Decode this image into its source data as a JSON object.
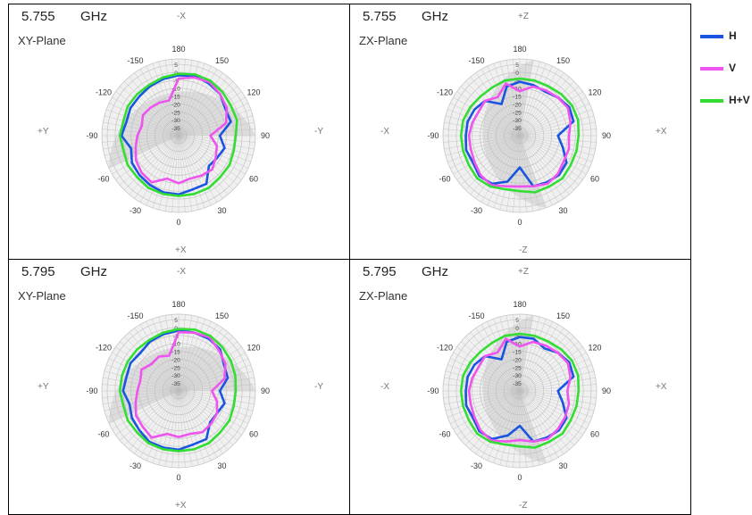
{
  "colors": {
    "H": "#1a55e0",
    "V": "#ee55ee",
    "HV": "#33dd33",
    "grid": "#bdbdbd",
    "shade": "#d9d9d9"
  },
  "legend": [
    {
      "label": "H",
      "color": "#1a55e0"
    },
    {
      "label": "V",
      "color": "#ee55ee"
    },
    {
      "label": "H+V",
      "color": "#33dd33"
    }
  ],
  "chart_data": [
    {
      "type": "line",
      "polar": true,
      "freq": "5.755",
      "unit": "GHz",
      "plane": "XY-Plane",
      "axis_top": "-X",
      "axis_bottom": "+X",
      "axis_left": "+Y",
      "axis_right": "-Y",
      "angle_labels": [
        "180",
        "-150",
        "-120",
        "-90",
        "-60",
        "-30",
        "0",
        "30",
        "60",
        "90",
        "120",
        "150"
      ],
      "radial_ticks": [
        "5",
        "0",
        "-5",
        "-10",
        "-15",
        "-20",
        "-25",
        "-30",
        "-35"
      ],
      "rlim": [
        -40,
        5
      ],
      "shaded_sector_deg": [
        -90,
        65
      ],
      "angles_deg": [
        0,
        15,
        30,
        45,
        60,
        75,
        90,
        105,
        120,
        135,
        150,
        165,
        180,
        195,
        210,
        225,
        240,
        255,
        270,
        285,
        300,
        315,
        330,
        345
      ],
      "series": [
        {
          "name": "H",
          "values": [
            -3,
            -3,
            -4,
            -5,
            -6,
            -9,
            -4,
            -6,
            -5,
            -5,
            -4,
            -3,
            -2,
            -1,
            -2,
            -3,
            -6,
            -6,
            -14,
            -10,
            -12,
            -13,
            -5,
            -5
          ]
        },
        {
          "name": "V",
          "values": [
            -10,
            -12,
            -6,
            -7,
            -9,
            -12,
            -14,
            -16,
            -14,
            -15,
            -16,
            -17,
            -4,
            -2,
            -1,
            -3,
            -5,
            -9,
            -20,
            -15,
            -13,
            -10,
            -11,
            -12
          ]
        },
        {
          "name": "H+V",
          "values": [
            -2,
            -2,
            -2,
            -3,
            -3,
            -4,
            -3,
            -4,
            -3,
            -3,
            -3,
            -2,
            -1,
            0,
            0,
            -1,
            -2,
            -2,
            -4,
            -4,
            -3,
            -3,
            -2,
            -2
          ]
        }
      ]
    },
    {
      "type": "line",
      "polar": true,
      "freq": "5.755",
      "unit": "GHz",
      "plane": "ZX-Plane",
      "axis_top": "+Z",
      "axis_bottom": "-Z",
      "axis_left": "-X",
      "axis_right": "+X",
      "angle_labels": [
        "180",
        "-150",
        "-120",
        "-90",
        "-60",
        "-30",
        "0",
        "30",
        "60",
        "90",
        "120",
        "150"
      ],
      "radial_ticks": [
        "5",
        "0",
        "-5",
        "-10",
        "-15",
        "-20",
        "-25",
        "-30",
        "-35"
      ],
      "rlim": [
        -40,
        5
      ],
      "shaded_sector_deg": [
        -170,
        -20
      ],
      "angles_deg": [
        0,
        15,
        30,
        45,
        60,
        75,
        90,
        105,
        120,
        135,
        150,
        165,
        180,
        195,
        210,
        225,
        240,
        255,
        270,
        285,
        300,
        315,
        330,
        345
      ],
      "series": [
        {
          "name": "H",
          "values": [
            -20,
            -10,
            -5,
            -4,
            -6,
            -5,
            -6,
            -6,
            -7,
            -9,
            -17,
            -8,
            -6,
            -7,
            -8,
            -6,
            -4,
            -5,
            -16,
            -12,
            -6,
            -5,
            -6,
            -7
          ]
        },
        {
          "name": "V",
          "values": [
            -8,
            -7,
            -4,
            -5,
            -7,
            -8,
            -8,
            -9,
            -10,
            -9,
            -12,
            -6,
            -12,
            -8,
            -7,
            -6,
            -5,
            -7,
            -9,
            -8,
            -8,
            -6,
            -5,
            -7
          ]
        },
        {
          "name": "H+V",
          "values": [
            -5,
            -5,
            -3,
            -2,
            -3,
            -3,
            -3,
            -3,
            -4,
            -5,
            -5,
            -4,
            -4,
            -4,
            -4,
            -3,
            -2,
            -2,
            -3,
            -3,
            -3,
            -2,
            -3,
            -3
          ]
        }
      ]
    },
    {
      "type": "line",
      "polar": true,
      "freq": "5.795",
      "unit": "GHz",
      "plane": "XY-Plane",
      "axis_top": "-X",
      "axis_bottom": "+X",
      "axis_left": "+Y",
      "axis_right": "-Y",
      "angle_labels": [
        "180",
        "-150",
        "-120",
        "-90",
        "-60",
        "-30",
        "0",
        "30",
        "60",
        "90",
        "120",
        "150"
      ],
      "radial_ticks": [
        "5",
        "0",
        "-5",
        "-10",
        "-15",
        "-20",
        "-25",
        "-30",
        "-35"
      ],
      "rlim": [
        -40,
        5
      ],
      "shaded_sector_deg": [
        -90,
        65
      ],
      "angles_deg": [
        0,
        15,
        30,
        45,
        60,
        75,
        90,
        105,
        120,
        135,
        150,
        165,
        180,
        195,
        210,
        225,
        240,
        255,
        270,
        285,
        300,
        315,
        330,
        345
      ],
      "series": [
        {
          "name": "H",
          "values": [
            -3,
            -3,
            -3,
            -5,
            -6,
            -8,
            -5,
            -6,
            -5,
            -6,
            -4,
            -3,
            -2,
            -2,
            -2,
            -3,
            -7,
            -8,
            -14,
            -10,
            -12,
            -12,
            -5,
            -5
          ]
        },
        {
          "name": "V",
          "values": [
            -11,
            -12,
            -6,
            -8,
            -9,
            -12,
            -14,
            -15,
            -13,
            -16,
            -15,
            -17,
            -3,
            -2,
            -1,
            -4,
            -6,
            -10,
            -19,
            -15,
            -12,
            -11,
            -10,
            -12
          ]
        },
        {
          "name": "H+V",
          "values": [
            -2,
            -2,
            -2,
            -3,
            -3,
            -4,
            -3,
            -3,
            -3,
            -3,
            -3,
            -2,
            -1,
            0,
            0,
            -1,
            -2,
            -3,
            -4,
            -4,
            -3,
            -3,
            -2,
            -2
          ]
        }
      ]
    },
    {
      "type": "line",
      "polar": true,
      "freq": "5.795",
      "unit": "GHz",
      "plane": "ZX-Plane",
      "axis_top": "+Z",
      "axis_bottom": "-Z",
      "axis_left": "-X",
      "axis_right": "+X",
      "angle_labels": [
        "180",
        "-150",
        "-120",
        "-90",
        "-60",
        "-30",
        "0",
        "30",
        "60",
        "90",
        "120",
        "150"
      ],
      "radial_ticks": [
        "5",
        "0",
        "-5",
        "-10",
        "-15",
        "-20",
        "-25",
        "-30",
        "-35"
      ],
      "rlim": [
        -40,
        5
      ],
      "shaded_sector_deg": [
        -170,
        -20
      ],
      "angles_deg": [
        0,
        15,
        30,
        45,
        60,
        75,
        90,
        105,
        120,
        135,
        150,
        165,
        180,
        195,
        210,
        225,
        240,
        255,
        270,
        285,
        300,
        315,
        330,
        345
      ],
      "series": [
        {
          "name": "H",
          "values": [
            -18,
            -11,
            -5,
            -4,
            -6,
            -5,
            -6,
            -6,
            -7,
            -9,
            -17,
            -8,
            -6,
            -6,
            -9,
            -6,
            -4,
            -5,
            -16,
            -12,
            -6,
            -5,
            -6,
            -7
          ]
        },
        {
          "name": "V",
          "values": [
            -9,
            -7,
            -4,
            -5,
            -7,
            -8,
            -8,
            -9,
            -10,
            -9,
            -12,
            -6,
            -12,
            -8,
            -7,
            -6,
            -5,
            -7,
            -10,
            -8,
            -7,
            -6,
            -5,
            -7
          ]
        },
        {
          "name": "H+V",
          "values": [
            -5,
            -5,
            -3,
            -2,
            -3,
            -3,
            -3,
            -3,
            -4,
            -5,
            -5,
            -4,
            -4,
            -4,
            -4,
            -3,
            -2,
            -2,
            -3,
            -3,
            -3,
            -2,
            -3,
            -3
          ]
        }
      ]
    }
  ]
}
